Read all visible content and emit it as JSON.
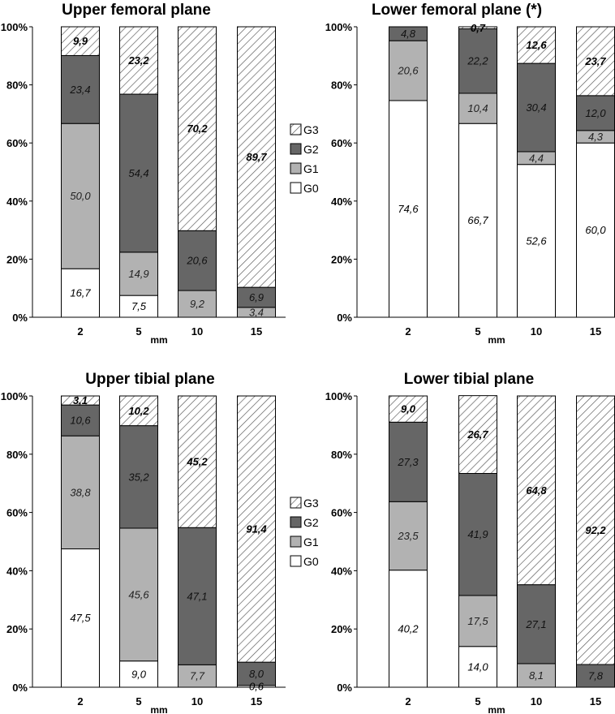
{
  "colors": {
    "G0": "#ffffff",
    "G1": "#b2b2b2",
    "G2": "#666666",
    "G3_hatch_bg": "#ffffff",
    "G3_hatch_line": "#555555",
    "border": "#000000"
  },
  "chart_data": [
    {
      "type": "bar",
      "stacked": true,
      "title": "Upper femoral plane",
      "categories": [
        "2",
        "5",
        "10",
        "15"
      ],
      "xlabel": "mm",
      "ylabel": "",
      "ylim": [
        0,
        100
      ],
      "yticks": [
        "0%",
        "20%",
        "40%",
        "60%",
        "80%",
        "100%"
      ],
      "series": [
        {
          "name": "G0",
          "values": [
            16.7,
            7.5,
            0,
            0
          ],
          "labels": [
            "16,7",
            "7,5",
            "",
            ""
          ]
        },
        {
          "name": "G1",
          "values": [
            50.0,
            14.9,
            9.2,
            3.4
          ],
          "labels": [
            "50,0",
            "14,9",
            "9,2",
            "3,4"
          ]
        },
        {
          "name": "G2",
          "values": [
            23.4,
            54.4,
            20.6,
            6.9
          ],
          "labels": [
            "23,4",
            "54,4",
            "20,6",
            "6,9"
          ]
        },
        {
          "name": "G3",
          "values": [
            9.9,
            23.2,
            70.2,
            89.7
          ],
          "labels": [
            "9,9",
            "23,2",
            "70,2",
            "89,7"
          ]
        }
      ]
    },
    {
      "type": "bar",
      "stacked": true,
      "title": "Lower femoral plane (*)",
      "categories": [
        "2",
        "5",
        "10",
        "15"
      ],
      "xlabel": "mm",
      "ylabel": "",
      "ylim": [
        0,
        100
      ],
      "yticks": [
        "0%",
        "20%",
        "40%",
        "60%",
        "80%",
        "100%"
      ],
      "series": [
        {
          "name": "G0",
          "values": [
            74.6,
            66.7,
            52.6,
            60.0
          ],
          "labels": [
            "74,6",
            "66,7",
            "52,6",
            "60,0"
          ]
        },
        {
          "name": "G1",
          "values": [
            20.6,
            10.4,
            4.4,
            4.3
          ],
          "labels": [
            "20,6",
            "10,4",
            "4,4",
            "4,3"
          ]
        },
        {
          "name": "G2",
          "values": [
            4.8,
            22.2,
            30.4,
            12.0
          ],
          "labels": [
            "4,8",
            "22,2",
            "30,4",
            "12,0"
          ]
        },
        {
          "name": "G3",
          "values": [
            0,
            0.7,
            12.6,
            23.7
          ],
          "labels": [
            "",
            "0,7",
            "12,6",
            "23,7"
          ]
        }
      ]
    },
    {
      "type": "bar",
      "stacked": true,
      "title": "Upper tibial plane",
      "categories": [
        "2",
        "5",
        "10",
        "15"
      ],
      "xlabel": "mm",
      "ylabel": "",
      "ylim": [
        0,
        100
      ],
      "yticks": [
        "0%",
        "20%",
        "40%",
        "60%",
        "80%",
        "100%"
      ],
      "series": [
        {
          "name": "G0",
          "values": [
            47.5,
            9.0,
            0,
            0.6
          ],
          "labels": [
            "47,5",
            "9,0",
            "",
            "0,6"
          ]
        },
        {
          "name": "G1",
          "values": [
            38.8,
            45.6,
            7.7,
            0
          ],
          "labels": [
            "38,8",
            "45,6",
            "7,7",
            ""
          ]
        },
        {
          "name": "G2",
          "values": [
            10.6,
            35.2,
            47.1,
            8.0
          ],
          "labels": [
            "10,6",
            "35,2",
            "47,1",
            "8,0"
          ]
        },
        {
          "name": "G3",
          "values": [
            3.1,
            10.2,
            45.2,
            91.4
          ],
          "labels": [
            "3,1",
            "10,2",
            "45,2",
            "91,4"
          ]
        }
      ]
    },
    {
      "type": "bar",
      "stacked": true,
      "title": "Lower tibial plane",
      "categories": [
        "2",
        "5",
        "10",
        "15"
      ],
      "xlabel": "mm",
      "ylabel": "",
      "ylim": [
        0,
        100
      ],
      "yticks": [
        "0%",
        "20%",
        "40%",
        "60%",
        "80%",
        "100%"
      ],
      "series": [
        {
          "name": "G0",
          "values": [
            40.2,
            14.0,
            0,
            0
          ],
          "labels": [
            "40,2",
            "14,0",
            "",
            ""
          ]
        },
        {
          "name": "G1",
          "values": [
            23.5,
            17.5,
            8.1,
            0
          ],
          "labels": [
            "23,5",
            "17,5",
            "8,1",
            ""
          ]
        },
        {
          "name": "G2",
          "values": [
            27.3,
            41.9,
            27.1,
            7.8
          ],
          "labels": [
            "27,3",
            "41,9",
            "27,1",
            "7,8"
          ]
        },
        {
          "name": "G3",
          "values": [
            9.0,
            26.7,
            64.8,
            92.2
          ],
          "labels": [
            "9,0",
            "26,7",
            "64,8",
            "92,2"
          ]
        }
      ]
    }
  ],
  "legends": [
    {
      "items": [
        "G3",
        "G2",
        "G1",
        "G0"
      ]
    },
    {
      "items": [
        "G3",
        "G2",
        "G1",
        "G0"
      ]
    }
  ]
}
